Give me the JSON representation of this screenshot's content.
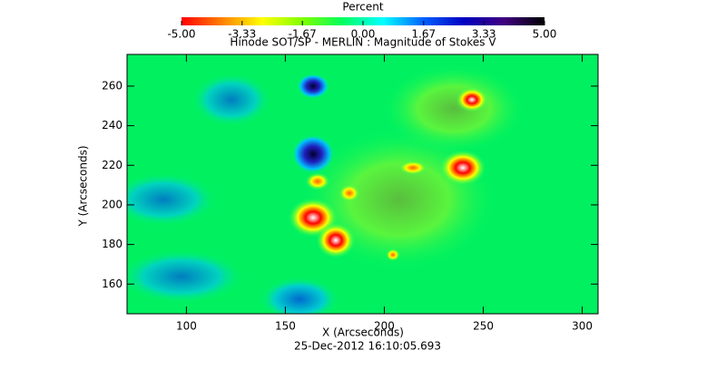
{
  "chart_data": {
    "type": "heatmap",
    "title": "Hinode SOT/SP - MERLIN : Magnitude of Stokes V",
    "x_label": "X (Arcseconds)",
    "y_label": "Y (Arcseconds)",
    "timestamp": "25-Dec-2012 16:10:05.693",
    "xlim": [
      70,
      308
    ],
    "xticks": [
      100,
      150,
      200,
      250,
      300
    ],
    "ylim": [
      145,
      276
    ],
    "yticks": [
      160,
      180,
      200,
      220,
      240,
      260
    ],
    "colorbar": {
      "title": "Percent",
      "clim": [
        -5,
        5
      ],
      "ticks": [
        {
          "value": -5,
          "label": "-5.00"
        },
        {
          "value": -3.33,
          "label": "-3.33"
        },
        {
          "value": -1.67,
          "label": "-1.67"
        },
        {
          "value": 0,
          "label": "0.00"
        },
        {
          "value": 1.67,
          "label": "1.67"
        },
        {
          "value": 3.33,
          "label": "3.33"
        },
        {
          "value": 5,
          "label": "5.00"
        }
      ],
      "colormap": [
        "#ff0000",
        "#ff8000",
        "#ffff00",
        "#80ff00",
        "#00ff60",
        "#00ffff",
        "#0060ff",
        "#0000c0",
        "#400080",
        "#000000"
      ]
    }
  }
}
